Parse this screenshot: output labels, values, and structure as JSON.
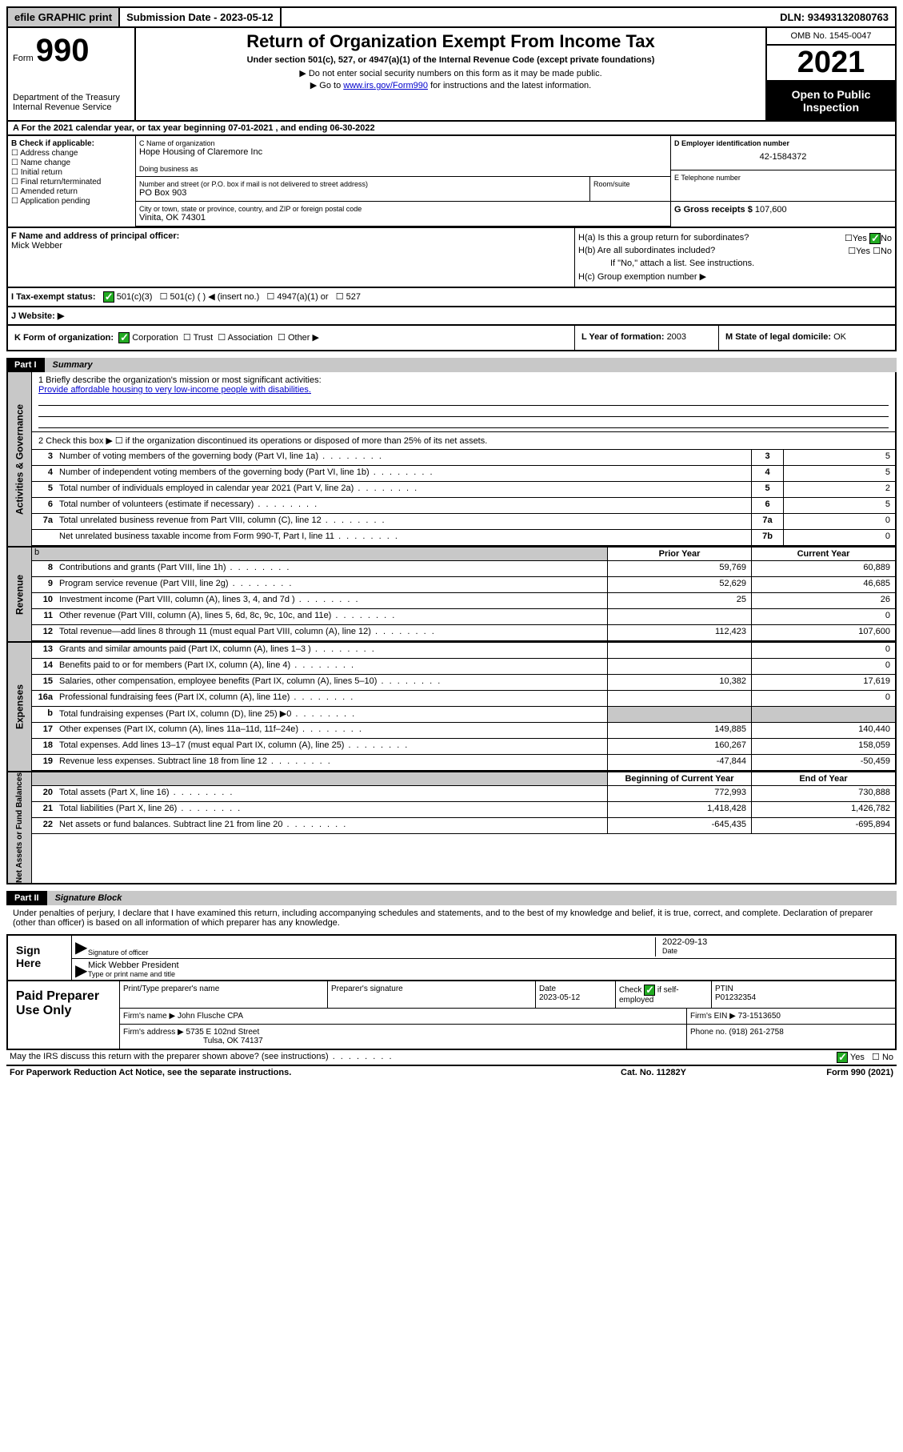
{
  "top": {
    "efile": "efile GRAPHIC print",
    "subdate_label": "Submission Date - ",
    "subdate": "2023-05-12",
    "dln_label": "DLN: ",
    "dln": "93493132080763"
  },
  "header": {
    "form_label": "Form",
    "form_num": "990",
    "dept": "Department of the Treasury\nInternal Revenue Service",
    "title": "Return of Organization Exempt From Income Tax",
    "subtitle": "Under section 501(c), 527, or 4947(a)(1) of the Internal Revenue Code (except private foundations)",
    "line1": "▶ Do not enter social security numbers on this form as it may be made public.",
    "line2a": "▶ Go to ",
    "line2_link": "www.irs.gov/Form990",
    "line2b": " for instructions and the latest information.",
    "omb": "OMB No. 1545-0047",
    "year": "2021",
    "open": "Open to Public Inspection"
  },
  "period": {
    "text_a": "A For the 2021 calendar year, or tax year beginning ",
    "begin": "07-01-2021",
    "text_b": " , and ending ",
    "end": "06-30-2022"
  },
  "box_b": {
    "head": "B Check if applicable:",
    "opts": [
      "Address change",
      "Name change",
      "Initial return",
      "Final return/terminated",
      "Amended return",
      "Application pending"
    ]
  },
  "box_c": {
    "name_label": "C Name of organization",
    "name": "Hope Housing of Claremore Inc",
    "dba_label": "Doing business as",
    "addr_label": "Number and street (or P.O. box if mail is not delivered to street address)",
    "addr": "PO Box 903",
    "room_label": "Room/suite",
    "city_label": "City or town, state or province, country, and ZIP or foreign postal code",
    "city": "Vinita, OK  74301"
  },
  "box_d": {
    "ein_label": "D Employer identification number",
    "ein": "42-1584372",
    "phone_label": "E Telephone number",
    "gross_label": "G Gross receipts $ ",
    "gross": "107,600"
  },
  "box_f": {
    "label": "F Name and address of principal officer:",
    "name": "Mick Webber"
  },
  "box_h": {
    "a": "H(a)  Is this a group return for subordinates?",
    "b": "H(b)  Are all subordinates included?",
    "b_note": "If \"No,\" attach a list. See instructions.",
    "c": "H(c)  Group exemption number ▶",
    "yes": "Yes",
    "no": "No"
  },
  "tax_status": {
    "label": "I   Tax-exempt status:",
    "c3": "501(c)(3)",
    "c": "501(c) (  ) ◀ (insert no.)",
    "a1": "4947(a)(1) or",
    "s527": "527"
  },
  "website": {
    "label": "J   Website: ▶"
  },
  "k": {
    "label": "K Form of organization:",
    "opts": [
      "Corporation",
      "Trust",
      "Association",
      "Other ▶"
    ]
  },
  "l": {
    "label": "L Year of formation: ",
    "val": "2003"
  },
  "m": {
    "label": "M State of legal domicile: ",
    "val": "OK"
  },
  "parts": {
    "i": {
      "label": "Part I",
      "title": "Summary"
    },
    "ii": {
      "label": "Part II",
      "title": "Signature Block"
    }
  },
  "mission": {
    "label": "1   Briefly describe the organization's mission or most significant activities:",
    "text": "Provide affordable housing to very low-income people with disabilities."
  },
  "line2_text": "2   Check this box ▶ ☐  if the organization discontinued its operations or disposed of more than 25% of its net assets.",
  "gov_lines": [
    {
      "num": "3",
      "desc": "Number of voting members of the governing body (Part VI, line 1a)",
      "box": "3",
      "val": "5"
    },
    {
      "num": "4",
      "desc": "Number of independent voting members of the governing body (Part VI, line 1b)",
      "box": "4",
      "val": "5"
    },
    {
      "num": "5",
      "desc": "Total number of individuals employed in calendar year 2021 (Part V, line 2a)",
      "box": "5",
      "val": "2"
    },
    {
      "num": "6",
      "desc": "Total number of volunteers (estimate if necessary)",
      "box": "6",
      "val": "5"
    },
    {
      "num": "7a",
      "desc": "Total unrelated business revenue from Part VIII, column (C), line 12",
      "box": "7a",
      "val": "0"
    },
    {
      "num": "",
      "desc": "Net unrelated business taxable income from Form 990-T, Part I, line 11",
      "box": "7b",
      "val": "0"
    }
  ],
  "headers2": {
    "prior": "Prior Year",
    "current": "Current Year",
    "begin": "Beginning of Current Year",
    "end": "End of Year"
  },
  "rev_lines": [
    {
      "num": "8",
      "desc": "Contributions and grants (Part VIII, line 1h)",
      "prior": "59,769",
      "cur": "60,889"
    },
    {
      "num": "9",
      "desc": "Program service revenue (Part VIII, line 2g)",
      "prior": "52,629",
      "cur": "46,685"
    },
    {
      "num": "10",
      "desc": "Investment income (Part VIII, column (A), lines 3, 4, and 7d )",
      "prior": "25",
      "cur": "26"
    },
    {
      "num": "11",
      "desc": "Other revenue (Part VIII, column (A), lines 5, 6d, 8c, 9c, 10c, and 11e)",
      "prior": "",
      "cur": "0"
    },
    {
      "num": "12",
      "desc": "Total revenue—add lines 8 through 11 (must equal Part VIII, column (A), line 12)",
      "prior": "112,423",
      "cur": "107,600"
    }
  ],
  "exp_lines": [
    {
      "num": "13",
      "desc": "Grants and similar amounts paid (Part IX, column (A), lines 1–3 )",
      "prior": "",
      "cur": "0"
    },
    {
      "num": "14",
      "desc": "Benefits paid to or for members (Part IX, column (A), line 4)",
      "prior": "",
      "cur": "0"
    },
    {
      "num": "15",
      "desc": "Salaries, other compensation, employee benefits (Part IX, column (A), lines 5–10)",
      "prior": "10,382",
      "cur": "17,619"
    },
    {
      "num": "16a",
      "desc": "Professional fundraising fees (Part IX, column (A), line 11e)",
      "prior": "",
      "cur": "0"
    },
    {
      "num": "b",
      "desc": "Total fundraising expenses (Part IX, column (D), line 25) ▶0",
      "prior": "SHADE",
      "cur": "SHADE"
    },
    {
      "num": "17",
      "desc": "Other expenses (Part IX, column (A), lines 11a–11d, 11f–24e)",
      "prior": "149,885",
      "cur": "140,440"
    },
    {
      "num": "18",
      "desc": "Total expenses. Add lines 13–17 (must equal Part IX, column (A), line 25)",
      "prior": "160,267",
      "cur": "158,059"
    },
    {
      "num": "19",
      "desc": "Revenue less expenses. Subtract line 18 from line 12",
      "prior": "-47,844",
      "cur": "-50,459"
    }
  ],
  "net_lines": [
    {
      "num": "20",
      "desc": "Total assets (Part X, line 16)",
      "prior": "772,993",
      "cur": "730,888"
    },
    {
      "num": "21",
      "desc": "Total liabilities (Part X, line 26)",
      "prior": "1,418,428",
      "cur": "1,426,782"
    },
    {
      "num": "22",
      "desc": "Net assets or fund balances. Subtract line 21 from line 20",
      "prior": "-645,435",
      "cur": "-695,894"
    }
  ],
  "side_labels": {
    "gov": "Activities & Governance",
    "rev": "Revenue",
    "exp": "Expenses",
    "net": "Net Assets or Fund Balances"
  },
  "sig": {
    "intro": "Under penalties of perjury, I declare that I have examined this return, including accompanying schedules and statements, and to the best of my knowledge and belief, it is true, correct, and complete. Declaration of preparer (other than officer) is based on all information of which preparer has any knowledge.",
    "here": "Sign Here",
    "officer_line": "Signature of officer",
    "date_label": "Date",
    "date": "2022-09-13",
    "name_title": "Mick Webber  President",
    "name_label": "Type or print name and title"
  },
  "prep": {
    "label": "Paid Preparer Use Only",
    "h_name": "Print/Type preparer's name",
    "h_sig": "Preparer's signature",
    "h_date": "Date",
    "h_date_val": "2023-05-12",
    "h_check": "Check ☑ if self-employed",
    "h_ptin": "PTIN",
    "ptin": "P01232354",
    "firm_name_label": "Firm's name    ▶ ",
    "firm_name": "John Flusche CPA",
    "firm_ein_label": "Firm's EIN ▶ ",
    "firm_ein": "73-1513650",
    "firm_addr_label": "Firm's address ▶ ",
    "firm_addr": "5735 E 102nd Street",
    "firm_city": "Tulsa, OK  74137",
    "phone_label": "Phone no. ",
    "phone": "(918) 261-2758"
  },
  "footer": {
    "discuss": "May the IRS discuss this return with the preparer shown above? (see instructions)",
    "yes": "Yes",
    "no": "No",
    "paperwork": "For Paperwork Reduction Act Notice, see the separate instructions.",
    "cat": "Cat. No. 11282Y",
    "form": "Form 990 (2021)"
  }
}
